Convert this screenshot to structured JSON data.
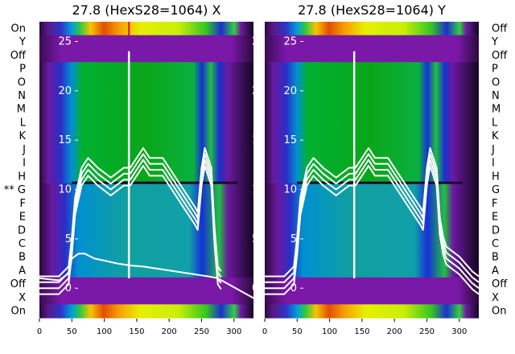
{
  "chart_data": [
    {
      "type": "heatmap",
      "title": "27.8 (HexS28=1064) X",
      "xlabel": "",
      "ylabel": "",
      "xlim": [
        0,
        330
      ],
      "x_ticks": [
        0,
        50,
        100,
        150,
        200,
        250,
        300
      ],
      "y_overlay_ticks": [
        0,
        5,
        10,
        15,
        20,
        25
      ],
      "y_overlay_range": [
        -3,
        27
      ],
      "row_labels": [
        "On",
        "Y",
        "Off",
        "P",
        "O",
        "N",
        "M",
        "L",
        "K",
        "J",
        "I",
        "H",
        "** G",
        "F",
        "E",
        "D",
        "C",
        "B",
        "A",
        "Off",
        "X",
        "On"
      ],
      "series": [
        {
          "x": [
            0,
            30,
            45,
            50,
            55,
            65,
            75,
            90,
            110,
            130,
            140,
            150,
            160,
            170,
            180,
            190,
            200,
            210,
            220,
            230,
            240,
            244,
            246,
            250,
            255,
            260,
            265,
            270,
            275,
            280
          ],
          "y": [
            0,
            0,
            1,
            4,
            8,
            11,
            12,
            11,
            10,
            11,
            11,
            12,
            13,
            12,
            12,
            12,
            11,
            10,
            9,
            8,
            7,
            6.5,
            8,
            11,
            13,
            12,
            11,
            5,
            1,
            0.5
          ]
        },
        {
          "x": [
            0,
            30,
            45,
            50,
            60,
            70,
            85,
            100,
            120,
            140,
            160,
            180,
            200,
            220,
            240,
            250,
            260,
            268,
            275,
            330
          ],
          "y": [
            1,
            0.8,
            1.5,
            3,
            3.5,
            3.5,
            3,
            2.8,
            2.5,
            2.3,
            2.2,
            2.0,
            1.8,
            1.6,
            1.4,
            1.3,
            1.2,
            1.1,
            1.0,
            -1
          ]
        },
        {
          "x": [
            138,
            138,
            138
          ],
          "y": [
            1,
            11,
            24
          ]
        }
      ]
    },
    {
      "type": "heatmap",
      "title": "27.8 (HexS28=1064) Y",
      "xlabel": "",
      "ylabel": "",
      "xlim": [
        0,
        330
      ],
      "x_ticks": [
        0,
        50,
        100,
        150,
        200,
        250,
        300
      ],
      "y_overlay_ticks": [
        0,
        5,
        10,
        15,
        20,
        25
      ],
      "y_overlay_range": [
        -3,
        27
      ],
      "row_labels": [
        "Off",
        "Y",
        "Off",
        "P",
        "O",
        "N",
        "M",
        "L",
        "K",
        "J",
        "I",
        "H",
        "G",
        "F",
        "E",
        "D",
        "C",
        "B",
        "A",
        "Off",
        "X",
        "On"
      ],
      "right_labels": [
        "Off",
        "Y",
        "Off",
        "P",
        "O",
        "N",
        "M",
        "L",
        "K",
        "J",
        "I",
        "H",
        "G",
        "F",
        "E",
        "D",
        "C",
        "B",
        "A",
        "Off",
        "X",
        "On"
      ],
      "series": [
        {
          "x": [
            0,
            30,
            45,
            50,
            55,
            65,
            75,
            90,
            110,
            130,
            140,
            150,
            160,
            170,
            180,
            190,
            200,
            210,
            220,
            230,
            240,
            244,
            246,
            250,
            255,
            260,
            265,
            270,
            275,
            280,
            300,
            320,
            330
          ],
          "y": [
            0,
            0,
            1,
            4,
            8,
            11,
            12,
            11,
            10,
            11,
            11,
            12,
            13,
            12,
            12,
            12,
            11,
            10,
            9,
            8,
            7,
            6.5,
            8,
            11,
            13,
            12,
            11,
            6,
            4,
            3,
            2,
            0.5,
            0
          ]
        },
        {
          "x": [
            138,
            138,
            138
          ],
          "y": [
            1,
            11,
            24
          ]
        }
      ]
    }
  ]
}
